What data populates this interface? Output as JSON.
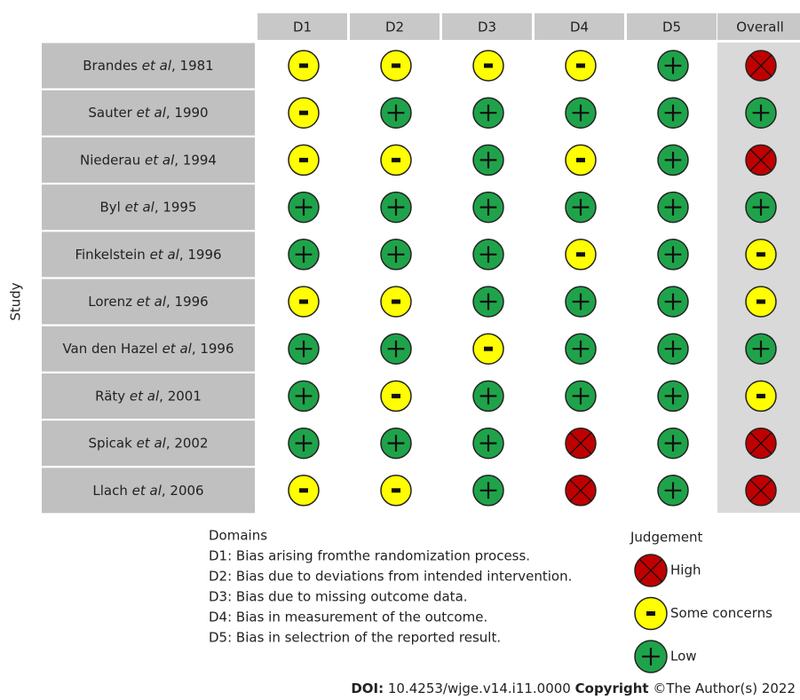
{
  "header": {
    "axis_label": "Study",
    "columns": [
      "D1",
      "D2",
      "D3",
      "D4",
      "D5",
      "Overall"
    ]
  },
  "rows": [
    {
      "study": [
        "Brandes ",
        "et al",
        ", 1981"
      ],
      "judgements": [
        "-",
        "-",
        "-",
        "-",
        "+",
        "x"
      ]
    },
    {
      "study": [
        "Sauter ",
        "et al",
        ", 1990"
      ],
      "judgements": [
        "-",
        "+",
        "+",
        "+",
        "+",
        "+"
      ]
    },
    {
      "study": [
        "Niederau ",
        "et al",
        ", 1994"
      ],
      "judgements": [
        "-",
        "-",
        "+",
        "-",
        "+",
        "x"
      ]
    },
    {
      "study": [
        "Byl ",
        "et al",
        ", 1995"
      ],
      "judgements": [
        "+",
        "+",
        "+",
        "+",
        "+",
        "+"
      ]
    },
    {
      "study": [
        "Finkelstein ",
        "et al",
        ", 1996"
      ],
      "judgements": [
        "+",
        "+",
        "+",
        "-",
        "+",
        "-"
      ]
    },
    {
      "study": [
        "Lorenz ",
        "et al",
        ", 1996"
      ],
      "judgements": [
        "-",
        "-",
        "+",
        "+",
        "+",
        "-"
      ]
    },
    {
      "study": [
        "Van den Hazel ",
        "et al",
        ", 1996"
      ],
      "judgements": [
        "+",
        "+",
        "-",
        "+",
        "+",
        "+"
      ]
    },
    {
      "study": [
        "Räty ",
        "et al",
        ", 2001"
      ],
      "judgements": [
        "+",
        "-",
        "+",
        "+",
        "+",
        "-"
      ]
    },
    {
      "study": [
        "Spicak ",
        "et al",
        ", 2002"
      ],
      "judgements": [
        "+",
        "+",
        "+",
        "x",
        "+",
        "x"
      ]
    },
    {
      "study": [
        "Llach ",
        "et al",
        ", 2006"
      ],
      "judgements": [
        "-",
        "-",
        "+",
        "x",
        "+",
        "x"
      ]
    }
  ],
  "domains": {
    "title": "Domains",
    "items": [
      "D1: Bias arising fromthe randomization process.",
      "D2: Bias due to deviations from intended intervention.",
      "D3: Bias due to missing outcome data.",
      "D4: Bias in measurement of the outcome.",
      "D5: Bias in selectrion of the reported result."
    ]
  },
  "judgement": {
    "title": "Judgement",
    "items": [
      {
        "symbol": "x",
        "label": "High",
        "color": "#c00000"
      },
      {
        "symbol": "-",
        "label": "Some concerns",
        "color": "#ffff00"
      },
      {
        "symbol": "+",
        "label": "Low",
        "color": "#1fa34a"
      }
    ]
  },
  "footer": {
    "doi_label": "DOI:",
    "doi": " 10.4253/wjge.v14.i11.0000 ",
    "copyright_label": "Copyright",
    "copyright": " ©The Author(s) 2022"
  }
}
